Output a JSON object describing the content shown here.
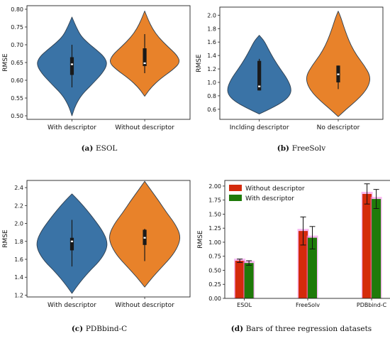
{
  "chart_data": [
    {
      "type": "violin",
      "panel": "a",
      "caption_letter": "(a)",
      "caption_text": "ESOL",
      "ylabel": "RMSE",
      "ylim": [
        0.49,
        0.81
      ],
      "yticks": [
        0.5,
        0.55,
        0.6,
        0.65,
        0.7,
        0.75,
        0.8
      ],
      "ytick_labels": [
        "0.50",
        "0.55",
        "0.60",
        "0.65",
        "0.70",
        "0.75",
        "0.80"
      ],
      "categories": [
        "With descriptor",
        "Without descriptor"
      ],
      "colors": [
        "#3a73a6",
        "#e8822a"
      ],
      "violins": [
        {
          "min": 0.5,
          "max": 0.778,
          "q1": 0.615,
          "median": 0.645,
          "q3": 0.665,
          "whisker_low": 0.58,
          "whisker_high": 0.7,
          "profile": [
            [
              0.5,
              0.0
            ],
            [
              0.53,
              0.1
            ],
            [
              0.56,
              0.28
            ],
            [
              0.59,
              0.58
            ],
            [
              0.62,
              0.86
            ],
            [
              0.645,
              1.0
            ],
            [
              0.665,
              0.92
            ],
            [
              0.685,
              0.7
            ],
            [
              0.705,
              0.45
            ],
            [
              0.725,
              0.25
            ],
            [
              0.75,
              0.12
            ],
            [
              0.778,
              0.0
            ]
          ]
        },
        {
          "min": 0.555,
          "max": 0.795,
          "q1": 0.64,
          "median": 0.648,
          "q3": 0.69,
          "whisker_low": 0.62,
          "whisker_high": 0.73,
          "profile": [
            [
              0.555,
              0.0
            ],
            [
              0.58,
              0.18
            ],
            [
              0.605,
              0.45
            ],
            [
              0.63,
              0.8
            ],
            [
              0.65,
              1.0
            ],
            [
              0.67,
              0.92
            ],
            [
              0.695,
              0.65
            ],
            [
              0.72,
              0.4
            ],
            [
              0.745,
              0.22
            ],
            [
              0.77,
              0.1
            ],
            [
              0.795,
              0.0
            ]
          ]
        }
      ]
    },
    {
      "type": "violin",
      "panel": "b",
      "caption_letter": "(b)",
      "caption_text": "FreeSolv",
      "ylabel": "RMSE",
      "ylim": [
        0.45,
        2.12
      ],
      "yticks": [
        0.6,
        0.8,
        1.0,
        1.2,
        1.4,
        1.6,
        1.8,
        2.0
      ],
      "ytick_labels": [
        "0.6",
        "0.8",
        "1.0",
        "1.2",
        "1.4",
        "1.6",
        "1.8",
        "2.0"
      ],
      "categories": [
        "Inclding descriptor",
        "No descriptor"
      ],
      "colors": [
        "#3a73a6",
        "#e8822a"
      ],
      "violins": [
        {
          "min": 0.53,
          "max": 1.7,
          "q1": 0.88,
          "median": 0.94,
          "q3": 1.32,
          "whisker_low": 0.88,
          "whisker_high": 1.35,
          "profile": [
            [
              0.53,
              0.0
            ],
            [
              0.62,
              0.4
            ],
            [
              0.72,
              0.78
            ],
            [
              0.82,
              0.98
            ],
            [
              0.92,
              1.0
            ],
            [
              1.05,
              0.88
            ],
            [
              1.2,
              0.66
            ],
            [
              1.35,
              0.45
            ],
            [
              1.5,
              0.28
            ],
            [
              1.62,
              0.15
            ],
            [
              1.7,
              0.0
            ]
          ]
        },
        {
          "min": 0.49,
          "max": 2.06,
          "q1": 1.0,
          "median": 1.12,
          "q3": 1.25,
          "whisker_low": 0.9,
          "whisker_high": 1.25,
          "profile": [
            [
              0.49,
              0.0
            ],
            [
              0.6,
              0.25
            ],
            [
              0.72,
              0.55
            ],
            [
              0.85,
              0.82
            ],
            [
              0.98,
              0.98
            ],
            [
              1.1,
              1.0
            ],
            [
              1.25,
              0.82
            ],
            [
              1.4,
              0.58
            ],
            [
              1.55,
              0.4
            ],
            [
              1.7,
              0.27
            ],
            [
              1.85,
              0.16
            ],
            [
              1.97,
              0.08
            ],
            [
              2.06,
              0.0
            ]
          ]
        }
      ]
    },
    {
      "type": "violin",
      "panel": "c",
      "caption_letter": "(c)",
      "caption_text": "PDBbind-C",
      "ylabel": "RMSE",
      "ylim": [
        1.18,
        2.48
      ],
      "yticks": [
        1.2,
        1.4,
        1.6,
        1.8,
        2.0,
        2.2,
        2.4
      ],
      "ytick_labels": [
        "1.2",
        "1.4",
        "1.6",
        "1.8",
        "2.0",
        "2.2",
        "2.4"
      ],
      "categories": [
        "With descriptor",
        "Without descriptor"
      ],
      "colors": [
        "#3a73a6",
        "#e8822a"
      ],
      "violins": [
        {
          "min": 1.22,
          "max": 2.33,
          "q1": 1.7,
          "median": 1.8,
          "q3": 1.84,
          "whisker_low": 1.52,
          "whisker_high": 2.04,
          "profile": [
            [
              1.22,
              0.0
            ],
            [
              1.32,
              0.18
            ],
            [
              1.45,
              0.45
            ],
            [
              1.58,
              0.78
            ],
            [
              1.7,
              0.97
            ],
            [
              1.8,
              1.0
            ],
            [
              1.92,
              0.86
            ],
            [
              2.05,
              0.62
            ],
            [
              2.15,
              0.42
            ],
            [
              2.25,
              0.2
            ],
            [
              2.33,
              0.0
            ]
          ]
        },
        {
          "min": 1.29,
          "max": 2.47,
          "q1": 1.76,
          "median": 1.84,
          "q3": 1.93,
          "whisker_low": 1.58,
          "whisker_high": 1.94,
          "profile": [
            [
              1.29,
              0.0
            ],
            [
              1.4,
              0.22
            ],
            [
              1.52,
              0.5
            ],
            [
              1.65,
              0.8
            ],
            [
              1.78,
              0.98
            ],
            [
              1.88,
              1.0
            ],
            [
              2.0,
              0.85
            ],
            [
              2.12,
              0.62
            ],
            [
              2.25,
              0.4
            ],
            [
              2.37,
              0.18
            ],
            [
              2.47,
              0.0
            ]
          ]
        }
      ]
    },
    {
      "type": "bar",
      "panel": "d",
      "caption_letter": "(d)",
      "caption_text": "Bars of three regression datasets",
      "ylabel": "RMSE",
      "ylim": [
        0,
        2.1
      ],
      "yticks": [
        0.0,
        0.25,
        0.5,
        0.75,
        1.0,
        1.25,
        1.5,
        1.75,
        2.0
      ],
      "ytick_labels": [
        "0.00",
        "0.25",
        "0.50",
        "0.75",
        "1.00",
        "1.25",
        "1.50",
        "1.75",
        "2.00"
      ],
      "categories": [
        "ESOL",
        "FreeSolv",
        "PDBbind-C"
      ],
      "legend_position": "top-left",
      "series": [
        {
          "name": "Without descriptor",
          "color": "#d42a0c",
          "values": [
            0.67,
            1.2,
            1.86
          ],
          "errors": [
            0.03,
            0.25,
            0.18
          ]
        },
        {
          "name": "With descriptor",
          "color": "#1f7a0a",
          "values": [
            0.63,
            1.08,
            1.77
          ],
          "errors": [
            0.04,
            0.2,
            0.17
          ]
        }
      ]
    }
  ]
}
